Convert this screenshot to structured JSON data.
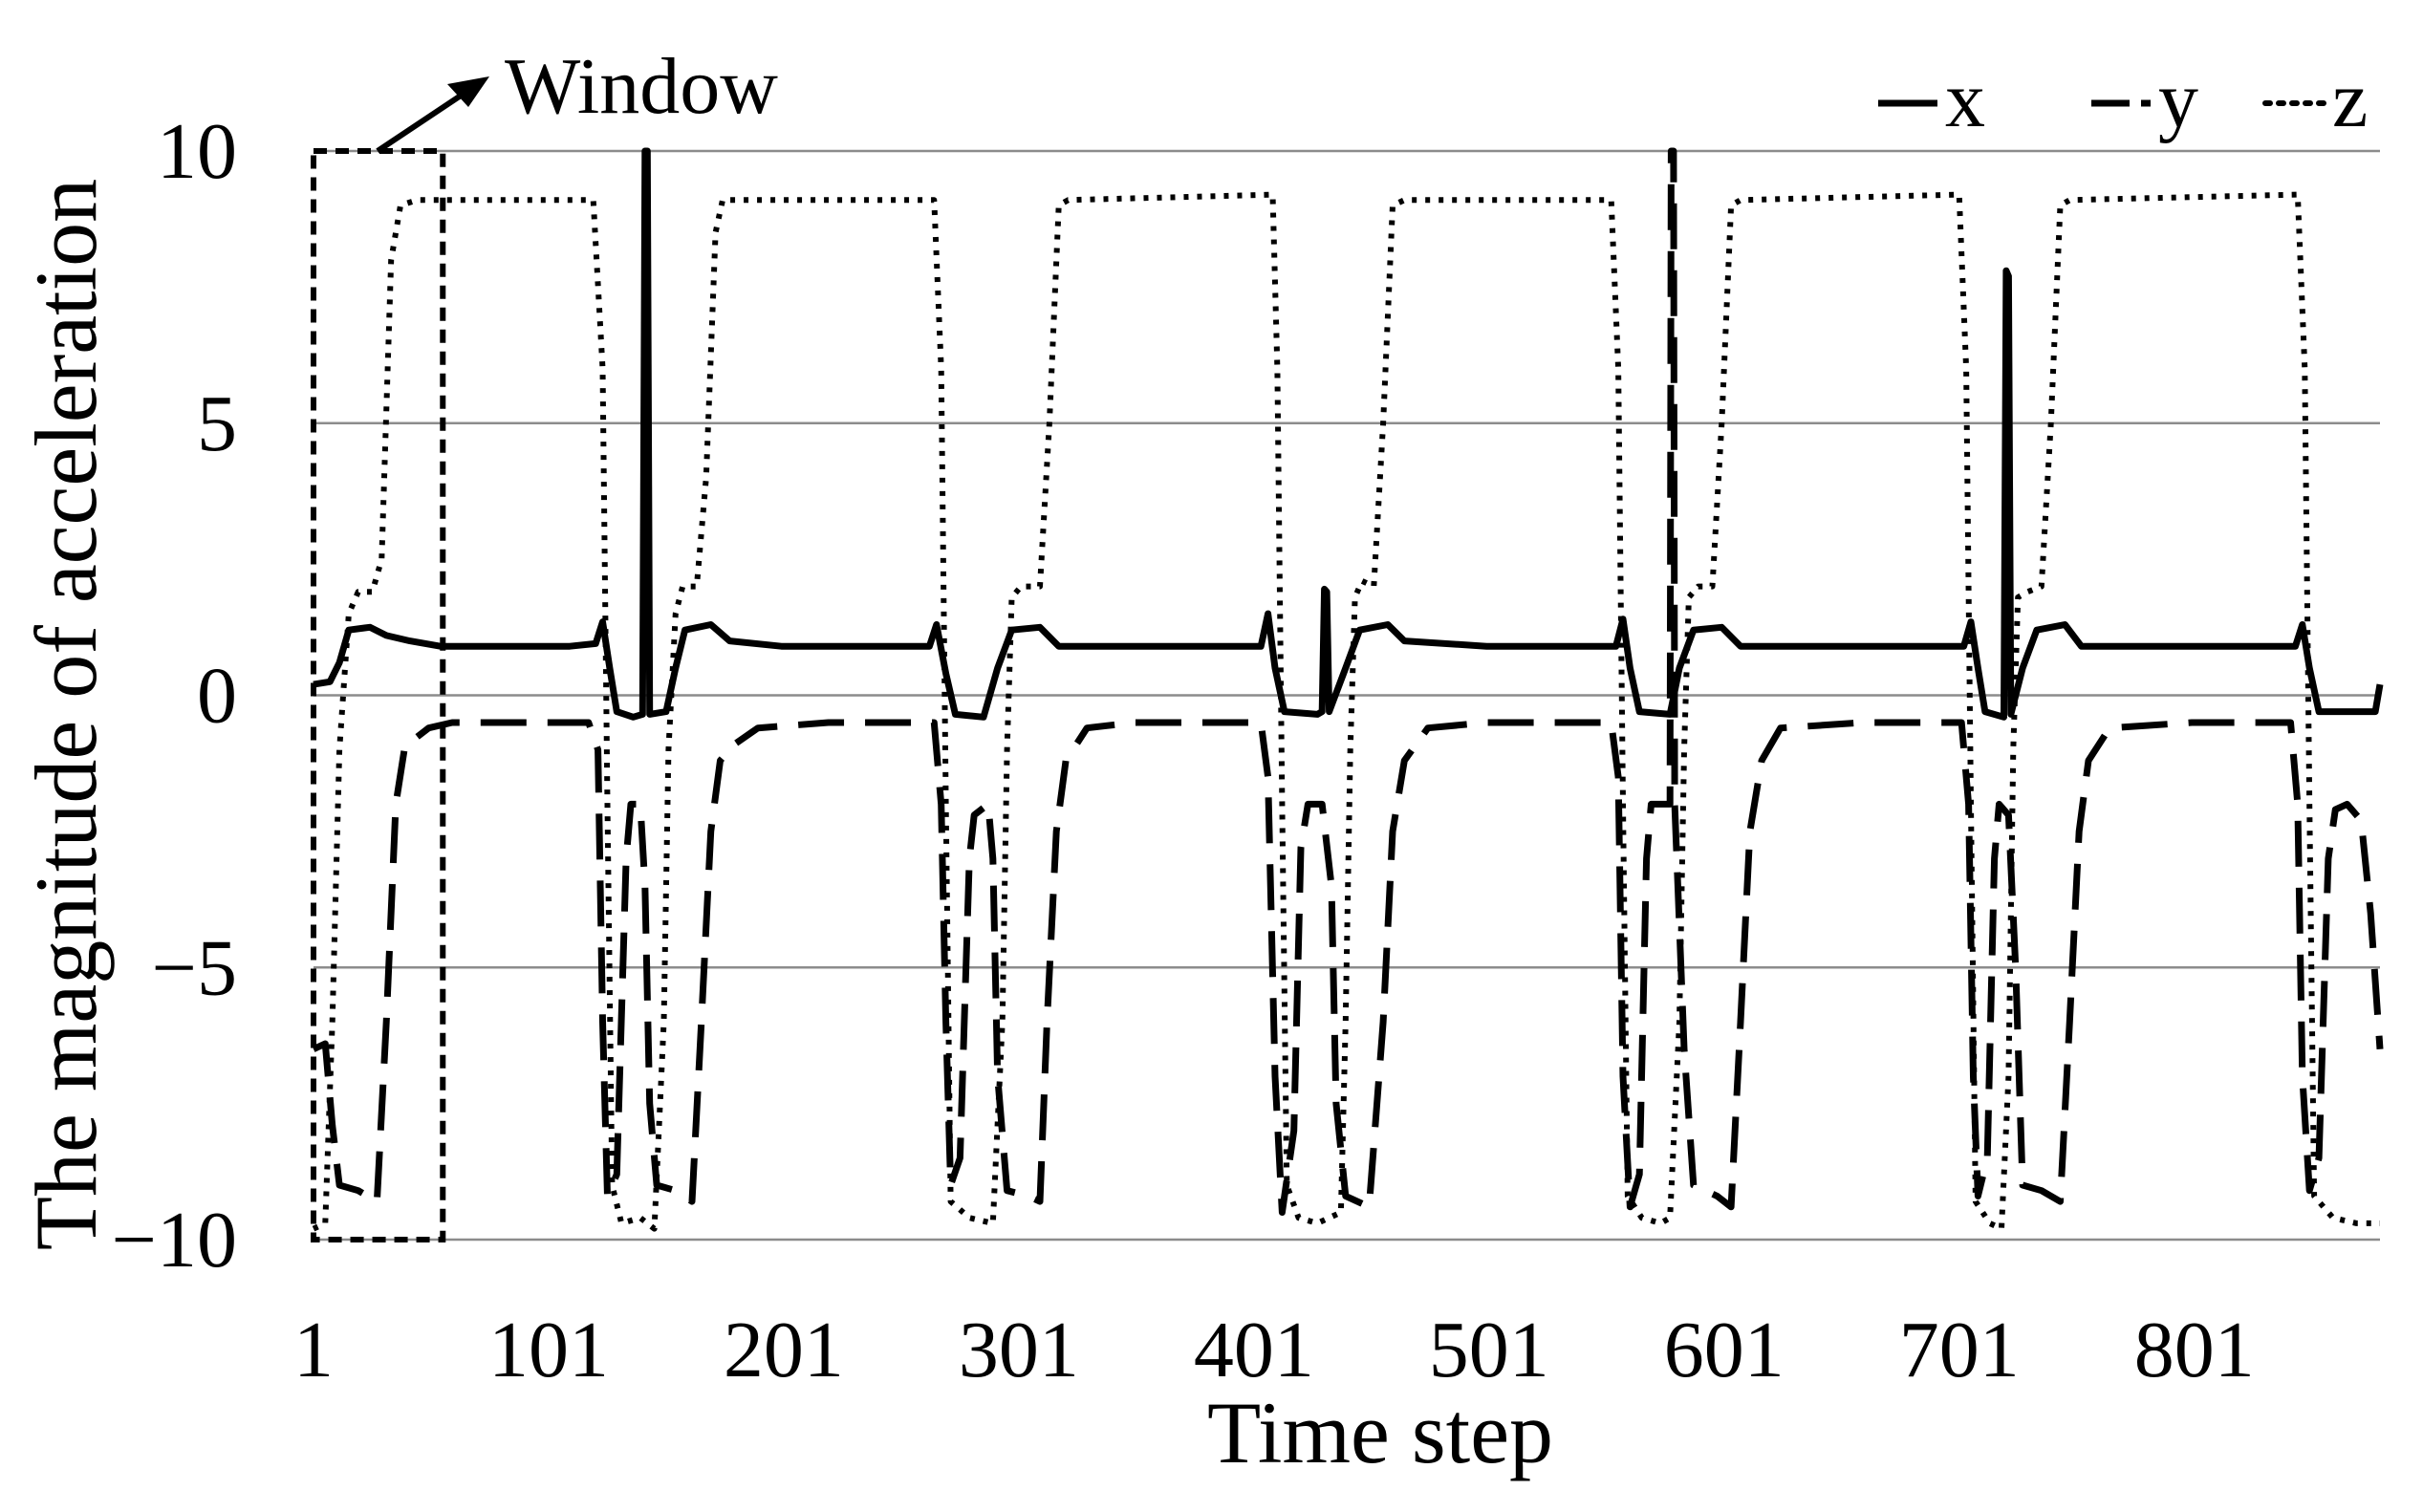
{
  "chart_data": {
    "type": "line",
    "xlabel": "Time step",
    "ylabel": "The magnitude of acceleration",
    "x_tick_labels": [
      "1",
      "101",
      "201",
      "301",
      "401",
      "501",
      "601",
      "701",
      "801"
    ],
    "y_tick_labels": [
      "10",
      "5",
      "0",
      "−5",
      "−10"
    ],
    "xlim": [
      1,
      880
    ],
    "ylim": [
      -10,
      10
    ],
    "grid": "horizontal",
    "legend_position": "top-right",
    "colors": {
      "line": "#000000",
      "grid": "#8c8c8c",
      "background": "#ffffff"
    },
    "annotation": {
      "label": "Window",
      "box_x_range": [
        1,
        56
      ],
      "box_y_range": [
        -10,
        10
      ]
    },
    "series": [
      {
        "name": "x",
        "style": "solid",
        "points": [
          [
            1,
            0.2
          ],
          [
            8,
            0.25
          ],
          [
            12,
            0.6
          ],
          [
            16,
            1.2
          ],
          [
            25,
            1.25
          ],
          [
            32,
            1.1
          ],
          [
            42,
            1.0
          ],
          [
            55,
            0.9
          ],
          [
            80,
            0.9
          ],
          [
            110,
            0.9
          ],
          [
            121,
            0.95
          ],
          [
            124,
            1.35
          ],
          [
            127,
            0.5
          ],
          [
            130,
            -0.3
          ],
          [
            137,
            -0.4
          ],
          [
            141,
            -0.35
          ],
          [
            142,
            10
          ],
          [
            143,
            10
          ],
          [
            144,
            -0.35
          ],
          [
            151,
            -0.3
          ],
          [
            155,
            0.5
          ],
          [
            159,
            1.2
          ],
          [
            170,
            1.3
          ],
          [
            178,
            1.0
          ],
          [
            200,
            0.9
          ],
          [
            250,
            0.9
          ],
          [
            263,
            0.9
          ],
          [
            266,
            1.3
          ],
          [
            270,
            0.4
          ],
          [
            274,
            -0.35
          ],
          [
            286,
            -0.4
          ],
          [
            292,
            0.5
          ],
          [
            298,
            1.2
          ],
          [
            310,
            1.25
          ],
          [
            318,
            0.9
          ],
          [
            350,
            0.9
          ],
          [
            404,
            0.9
          ],
          [
            407,
            1.5
          ],
          [
            410,
            0.5
          ],
          [
            414,
            -0.3
          ],
          [
            428,
            -0.35
          ],
          [
            430,
            -0.3
          ],
          [
            431,
            1.95
          ],
          [
            432,
            1.9
          ],
          [
            433,
            -0.3
          ],
          [
            440,
            0.5
          ],
          [
            446,
            1.2
          ],
          [
            458,
            1.3
          ],
          [
            465,
            1.0
          ],
          [
            500,
            0.9
          ],
          [
            555,
            0.9
          ],
          [
            558,
            1.4
          ],
          [
            561,
            0.5
          ],
          [
            565,
            -0.3
          ],
          [
            578,
            -0.35
          ],
          [
            582,
            0.5
          ],
          [
            588,
            1.2
          ],
          [
            600,
            1.25
          ],
          [
            608,
            0.9
          ],
          [
            650,
            0.9
          ],
          [
            703,
            0.9
          ],
          [
            706,
            1.35
          ],
          [
            709,
            0.5
          ],
          [
            712,
            -0.3
          ],
          [
            720,
            -0.4
          ],
          [
            721,
            7.8
          ],
          [
            722,
            7.7
          ],
          [
            723,
            -0.35
          ],
          [
            728,
            0.5
          ],
          [
            734,
            1.2
          ],
          [
            746,
            1.3
          ],
          [
            753,
            0.9
          ],
          [
            800,
            0.9
          ],
          [
            844,
            0.9
          ],
          [
            847,
            1.3
          ],
          [
            850,
            0.5
          ],
          [
            854,
            -0.3
          ],
          [
            878,
            -0.3
          ],
          [
            880,
            0.2
          ]
        ]
      },
      {
        "name": "y",
        "style": "dashed",
        "points": [
          [
            1,
            -6.5
          ],
          [
            6,
            -6.4
          ],
          [
            9,
            -7.9
          ],
          [
            12,
            -9.0
          ],
          [
            20,
            -9.1
          ],
          [
            28,
            -9.3
          ],
          [
            32,
            -6.0
          ],
          [
            36,
            -2.0
          ],
          [
            40,
            -0.9
          ],
          [
            44,
            -0.8
          ],
          [
            50,
            -0.6
          ],
          [
            60,
            -0.5
          ],
          [
            100,
            -0.5
          ],
          [
            118,
            -0.5
          ],
          [
            122,
            -1.0
          ],
          [
            124,
            -6.0
          ],
          [
            126,
            -9.2
          ],
          [
            130,
            -8.8
          ],
          [
            134,
            -3.0
          ],
          [
            136,
            -2.0
          ],
          [
            140,
            -2.0
          ],
          [
            142,
            -3.5
          ],
          [
            144,
            -7.5
          ],
          [
            147,
            -9.0
          ],
          [
            155,
            -9.1
          ],
          [
            162,
            -9.3
          ],
          [
            166,
            -6.0
          ],
          [
            170,
            -2.5
          ],
          [
            174,
            -1.2
          ],
          [
            180,
            -0.9
          ],
          [
            190,
            -0.6
          ],
          [
            220,
            -0.5
          ],
          [
            265,
            -0.5
          ],
          [
            268,
            -2.0
          ],
          [
            270,
            -6.0
          ],
          [
            272,
            -9.0
          ],
          [
            276,
            -8.5
          ],
          [
            280,
            -3.0
          ],
          [
            282,
            -2.2
          ],
          [
            288,
            -2.0
          ],
          [
            290,
            -3.0
          ],
          [
            292,
            -7.0
          ],
          [
            296,
            -9.1
          ],
          [
            305,
            -9.2
          ],
          [
            310,
            -9.3
          ],
          [
            313,
            -6.0
          ],
          [
            317,
            -2.5
          ],
          [
            321,
            -1.2
          ],
          [
            330,
            -0.6
          ],
          [
            350,
            -0.5
          ],
          [
            404,
            -0.5
          ],
          [
            407,
            -1.5
          ],
          [
            410,
            -7.0
          ],
          [
            413,
            -9.5
          ],
          [
            418,
            -8.0
          ],
          [
            421,
            -2.8
          ],
          [
            424,
            -2.0
          ],
          [
            430,
            -2.0
          ],
          [
            434,
            -3.5
          ],
          [
            436,
            -7.5
          ],
          [
            440,
            -9.2
          ],
          [
            450,
            -9.4
          ],
          [
            456,
            -6.0
          ],
          [
            460,
            -2.5
          ],
          [
            465,
            -1.2
          ],
          [
            475,
            -0.6
          ],
          [
            500,
            -0.5
          ],
          [
            553,
            -0.5
          ],
          [
            556,
            -1.5
          ],
          [
            558,
            -7.0
          ],
          [
            561,
            -9.4
          ],
          [
            565,
            -8.8
          ],
          [
            568,
            -3.0
          ],
          [
            570,
            -2.0
          ],
          [
            578,
            -2.0
          ],
          [
            578.5,
            10
          ],
          [
            579.5,
            10
          ],
          [
            580,
            -2.0
          ],
          [
            584,
            -6.5
          ],
          [
            588,
            -9.0
          ],
          [
            598,
            -9.2
          ],
          [
            604,
            -9.4
          ],
          [
            608,
            -6.0
          ],
          [
            612,
            -2.5
          ],
          [
            617,
            -1.2
          ],
          [
            625,
            -0.6
          ],
          [
            660,
            -0.5
          ],
          [
            702,
            -0.5
          ],
          [
            705,
            -2.0
          ],
          [
            707,
            -7.0
          ],
          [
            709,
            -9.2
          ],
          [
            713,
            -8.5
          ],
          [
            716,
            -3.0
          ],
          [
            718,
            -2.0
          ],
          [
            722,
            -2.2
          ],
          [
            725,
            -5.0
          ],
          [
            728,
            -9.0
          ],
          [
            736,
            -9.1
          ],
          [
            744,
            -9.3
          ],
          [
            748,
            -6.0
          ],
          [
            752,
            -2.5
          ],
          [
            756,
            -1.2
          ],
          [
            765,
            -0.6
          ],
          [
            800,
            -0.5
          ],
          [
            842,
            -0.5
          ],
          [
            845,
            -2.0
          ],
          [
            847,
            -7.0
          ],
          [
            850,
            -9.1
          ],
          [
            854,
            -8.5
          ],
          [
            858,
            -3.0
          ],
          [
            861,
            -2.1
          ],
          [
            866,
            -2.0
          ],
          [
            872,
            -2.3
          ],
          [
            876,
            -4.0
          ],
          [
            880,
            -6.5
          ]
        ]
      },
      {
        "name": "z",
        "style": "dotted",
        "points": [
          [
            1,
            -9.8
          ],
          [
            6,
            -9.7
          ],
          [
            9,
            -6.0
          ],
          [
            12,
            -1.0
          ],
          [
            16,
            1.5
          ],
          [
            20,
            1.9
          ],
          [
            26,
            1.9
          ],
          [
            30,
            2.5
          ],
          [
            34,
            8.0
          ],
          [
            38,
            9.0
          ],
          [
            45,
            9.1
          ],
          [
            120,
            9.1
          ],
          [
            124,
            6.0
          ],
          [
            126,
            -2.0
          ],
          [
            128,
            -9.0
          ],
          [
            132,
            -9.7
          ],
          [
            140,
            -9.6
          ],
          [
            146,
            -9.8
          ],
          [
            150,
            -6.0
          ],
          [
            152,
            -1.0
          ],
          [
            155,
            1.5
          ],
          [
            158,
            2.0
          ],
          [
            164,
            2.0
          ],
          [
            168,
            4.0
          ],
          [
            172,
            8.5
          ],
          [
            175,
            9.1
          ],
          [
            265,
            9.1
          ],
          [
            268,
            6.0
          ],
          [
            270,
            -2.0
          ],
          [
            272,
            -9.3
          ],
          [
            280,
            -9.6
          ],
          [
            290,
            -9.7
          ],
          [
            294,
            -6.0
          ],
          [
            296,
            -1.0
          ],
          [
            298,
            1.8
          ],
          [
            302,
            2.0
          ],
          [
            310,
            2.0
          ],
          [
            314,
            5.0
          ],
          [
            318,
            9.0
          ],
          [
            322,
            9.1
          ],
          [
            409,
            9.2
          ],
          [
            411,
            6.0
          ],
          [
            413,
            -2.0
          ],
          [
            415,
            -9.0
          ],
          [
            420,
            -9.6
          ],
          [
            428,
            -9.7
          ],
          [
            438,
            -9.5
          ],
          [
            440,
            -6.0
          ],
          [
            442,
            -1.0
          ],
          [
            444,
            1.8
          ],
          [
            447,
            2.1
          ],
          [
            452,
            2.0
          ],
          [
            456,
            5.0
          ],
          [
            460,
            9.0
          ],
          [
            465,
            9.1
          ],
          [
            553,
            9.1
          ],
          [
            556,
            6.0
          ],
          [
            558,
            -2.0
          ],
          [
            560,
            -9.2
          ],
          [
            566,
            -9.6
          ],
          [
            574,
            -9.7
          ],
          [
            578,
            -9.6
          ],
          [
            582,
            -6.0
          ],
          [
            584,
            -1.0
          ],
          [
            586,
            1.8
          ],
          [
            590,
            2.0
          ],
          [
            596,
            2.0
          ],
          [
            600,
            5.0
          ],
          [
            604,
            9.0
          ],
          [
            608,
            9.1
          ],
          [
            701,
            9.2
          ],
          [
            704,
            6.0
          ],
          [
            706,
            -2.0
          ],
          [
            708,
            -9.3
          ],
          [
            714,
            -9.7
          ],
          [
            719,
            -9.8
          ],
          [
            722,
            -7.0
          ],
          [
            724,
            -1.0
          ],
          [
            726,
            1.8
          ],
          [
            730,
            1.9
          ],
          [
            736,
            2.0
          ],
          [
            740,
            5.0
          ],
          [
            744,
            9.0
          ],
          [
            748,
            9.1
          ],
          [
            845,
            9.2
          ],
          [
            848,
            6.0
          ],
          [
            850,
            -2.0
          ],
          [
            852,
            -9.2
          ],
          [
            860,
            -9.6
          ],
          [
            870,
            -9.7
          ],
          [
            880,
            -9.7
          ]
        ]
      }
    ]
  }
}
